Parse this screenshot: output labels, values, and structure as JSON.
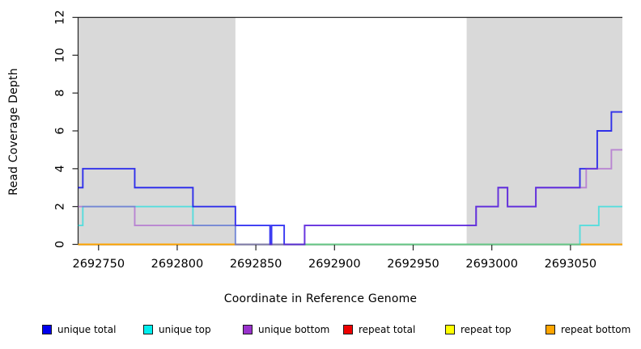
{
  "figure": {
    "background_color": "#ffffff",
    "masked_region_color": "#d9d9d9"
  },
  "axes": {
    "x": {
      "label": "Coordinate in Reference Genome",
      "min": 2692737,
      "max": 2693083,
      "tick_values": [
        2692750,
        2692800,
        2692850,
        2692900,
        2692950,
        2693000,
        2693050
      ],
      "tick_labels": [
        "2692750",
        "2692800",
        "2692850",
        "2692900",
        "2692950",
        "2693000",
        "2693050"
      ]
    },
    "y": {
      "label": "Read Coverage Depth",
      "min": 0,
      "max": 12,
      "tick_values": [
        0,
        2,
        4,
        6,
        8,
        10,
        12
      ],
      "tick_labels": [
        "0",
        "2",
        "4",
        "6",
        "8",
        "10",
        "12"
      ]
    }
  },
  "chart_data": {
    "type": "line",
    "subtype": "step",
    "title": "",
    "xlabel": "Coordinate in Reference Genome",
    "ylabel": "Read Coverage Depth",
    "xlim": [
      2692737,
      2693083
    ],
    "ylim": [
      0,
      12
    ],
    "grid": false,
    "masked_regions": [
      [
        2692737,
        2692837
      ],
      [
        2692984,
        2693083
      ]
    ],
    "draw_order": [
      "repeat total",
      "repeat top",
      "repeat bottom",
      "unique top",
      "unique total",
      "unique bottom"
    ],
    "series": [
      {
        "name": "unique total",
        "color": "#0000ee",
        "opacity": 0.78,
        "points": [
          [
            2692737,
            3
          ],
          [
            2692740,
            4
          ],
          [
            2692773,
            3
          ],
          [
            2692810,
            2
          ],
          [
            2692837,
            1
          ],
          [
            2692859,
            0
          ],
          [
            2692860,
            1
          ],
          [
            2692868,
            0
          ],
          [
            2692881,
            1
          ],
          [
            2692990,
            2
          ],
          [
            2693004,
            3
          ],
          [
            2693010,
            2
          ],
          [
            2693028,
            3
          ],
          [
            2693056,
            4
          ],
          [
            2693067,
            6
          ],
          [
            2693076,
            7
          ]
        ]
      },
      {
        "name": "unique top",
        "color": "#00e0e0",
        "opacity": 0.6,
        "points": [
          [
            2692737,
            1
          ],
          [
            2692740,
            2
          ],
          [
            2692810,
            1
          ],
          [
            2692837,
            0
          ],
          [
            2693056,
            1
          ],
          [
            2693068,
            2
          ]
        ]
      },
      {
        "name": "unique bottom",
        "color": "#9932cc",
        "opacity": 0.5,
        "points": [
          [
            2692737,
            2
          ],
          [
            2692773,
            1
          ],
          [
            2692837,
            0
          ],
          [
            2692881,
            1
          ],
          [
            2692990,
            2
          ],
          [
            2693004,
            3
          ],
          [
            2693010,
            2
          ],
          [
            2693028,
            3
          ],
          [
            2693060,
            4
          ],
          [
            2693076,
            5
          ]
        ]
      },
      {
        "name": "repeat total",
        "color": "#ee0000",
        "opacity": 1,
        "points": [
          [
            2692737,
            0
          ]
        ]
      },
      {
        "name": "repeat top",
        "color": "#ffff00",
        "opacity": 1,
        "points": [
          [
            2692737,
            0
          ]
        ]
      },
      {
        "name": "repeat bottom",
        "color": "#ffa500",
        "opacity": 1,
        "points": [
          [
            2692737,
            0
          ]
        ]
      }
    ]
  },
  "legend": {
    "items": [
      {
        "label": "unique total",
        "color": "#0000ee"
      },
      {
        "label": "unique top",
        "color": "#00eeee"
      },
      {
        "label": "unique bottom",
        "color": "#9932cc"
      },
      {
        "label": "repeat total",
        "color": "#ee0000"
      },
      {
        "label": "repeat top",
        "color": "#ffff00"
      },
      {
        "label": "repeat bottom",
        "color": "#ffa500"
      }
    ]
  }
}
